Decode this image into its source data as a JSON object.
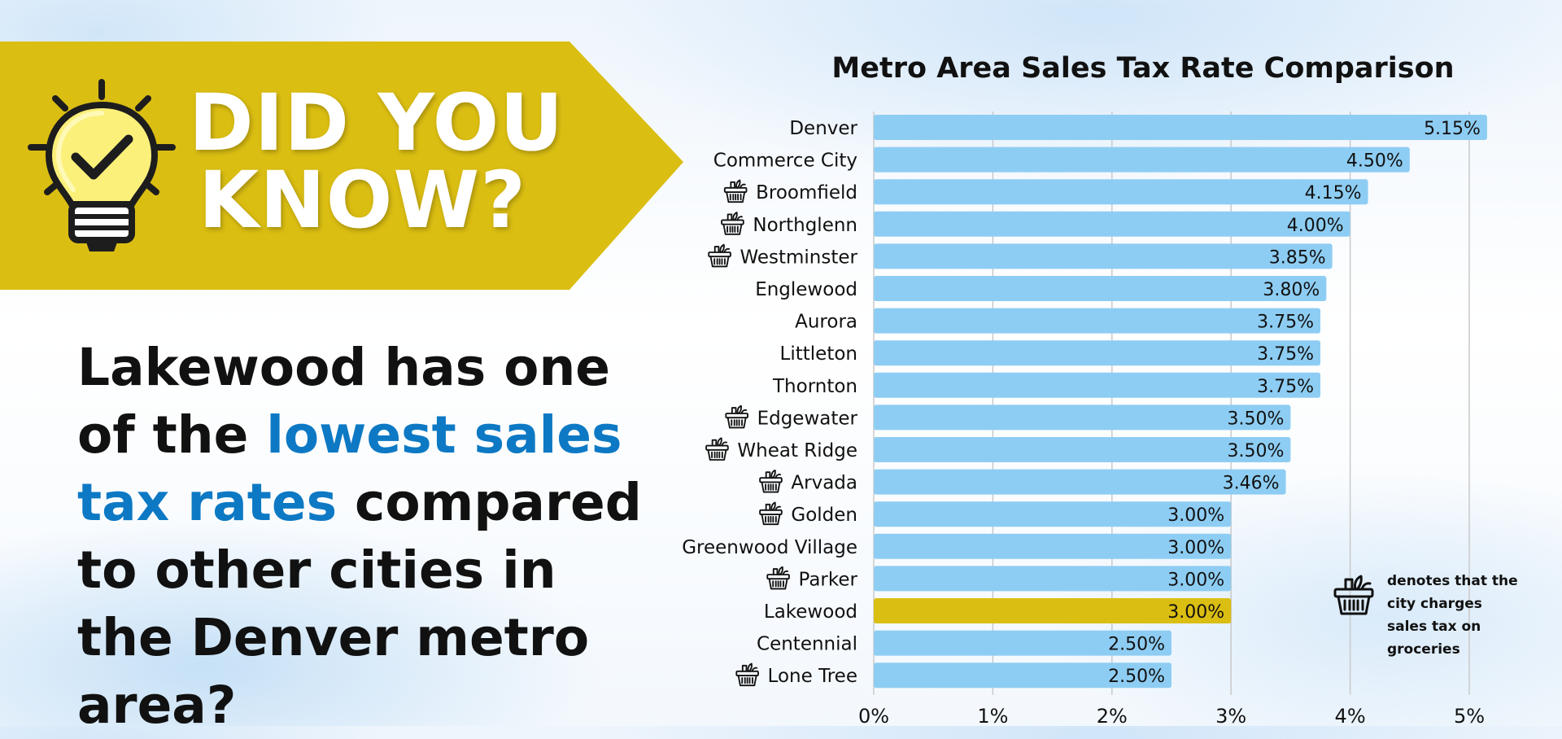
{
  "banner": {
    "line1": "DID YOU",
    "line2": "KNOW?",
    "color": "#dbbe12"
  },
  "headline": {
    "part1": "Lakewood has one of the ",
    "highlight": "lowest sales tax rates",
    "part2": " compared to other cities in the Denver metro area?",
    "highlight_color": "#0d79c4"
  },
  "legend": {
    "icon": "grocery-basket-icon",
    "text": "denotes that the city charges sales tax on groceries"
  },
  "colors": {
    "bar": "#8ecdf3",
    "bar_highlight": "#dbbe12",
    "grid": "#c9c9c9"
  },
  "chart_data": {
    "type": "bar",
    "orientation": "horizontal",
    "title": "Metro Area Sales Tax Rate Comparison",
    "xlim": [
      0,
      5.15
    ],
    "x_ticks": [
      "0%",
      "1%",
      "2%",
      "3%",
      "4%",
      "5%"
    ],
    "grid": true,
    "categories": [
      "Denver",
      "Commerce City",
      "Broomfield",
      "Northglenn",
      "Westminster",
      "Englewood",
      "Aurora",
      "Littleton",
      "Thornton",
      "Edgewater",
      "Wheat Ridge",
      "Arvada",
      "Golden",
      "Greenwood Village",
      "Parker",
      "Lakewood",
      "Centennial",
      "Lone Tree"
    ],
    "values": [
      5.15,
      4.5,
      4.15,
      4.0,
      3.85,
      3.8,
      3.75,
      3.75,
      3.75,
      3.5,
      3.5,
      3.46,
      3.0,
      3.0,
      3.0,
      3.0,
      2.5,
      2.5
    ],
    "value_labels": [
      "5.15%",
      "4.50%",
      "4.15%",
      "4.00%",
      "3.85%",
      "3.80%",
      "3.75%",
      "3.75%",
      "3.75%",
      "3.50%",
      "3.50%",
      "3.46%",
      "3.00%",
      "3.00%",
      "3.00%",
      "3.00%",
      "2.50%",
      "2.50%"
    ],
    "grocery_tax": [
      false,
      false,
      true,
      true,
      true,
      false,
      false,
      false,
      false,
      true,
      true,
      true,
      true,
      false,
      true,
      false,
      false,
      true
    ],
    "highlighted": "Lakewood"
  }
}
